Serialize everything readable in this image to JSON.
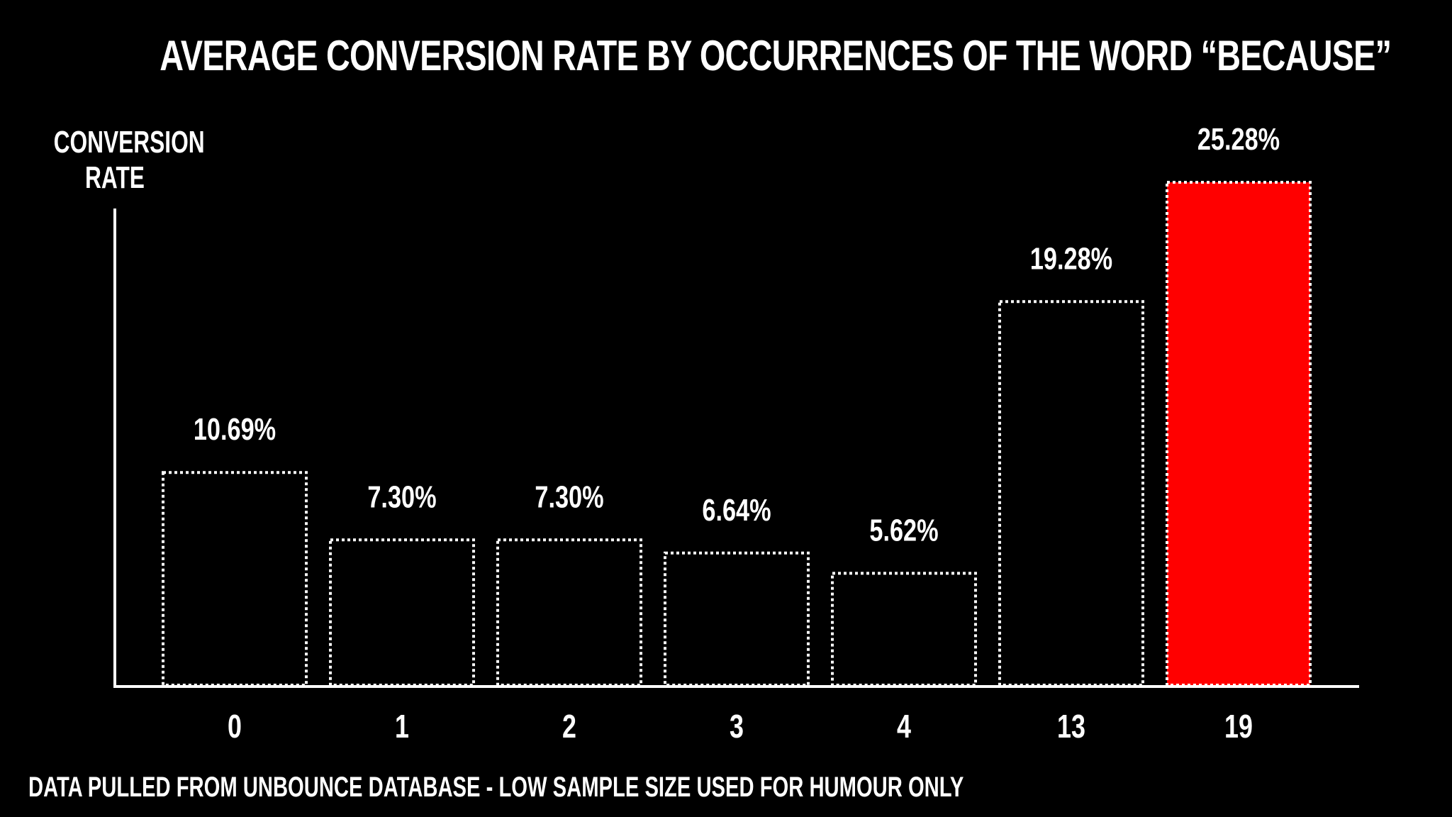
{
  "chart_data": {
    "type": "bar",
    "title": "AVERAGE CONVERSION RATE BY OCCURRENCES OF THE WORD “BECAUSE”",
    "ylabel": "CONVERSION RATE",
    "xlabel": "",
    "categories": [
      "0",
      "1",
      "2",
      "3",
      "4",
      "13",
      "19"
    ],
    "values": [
      10.69,
      7.3,
      7.3,
      6.64,
      5.62,
      19.28,
      25.28
    ],
    "value_labels": [
      "10.69%",
      "7.30%",
      "7.30%",
      "6.64%",
      "5.62%",
      "19.28%",
      "25.28%"
    ],
    "highlight_index": 6,
    "ylim": [
      0,
      25.28
    ],
    "grid": false,
    "colors": {
      "background": "#000000",
      "outline": "#ffffff",
      "highlight": "#ff0000",
      "text": "#ffffff"
    }
  },
  "footnote": "DATA PULLED FROM UNBOUNCE DATABASE - LOW SAMPLE SIZE USED FOR HUMOUR ONLY"
}
